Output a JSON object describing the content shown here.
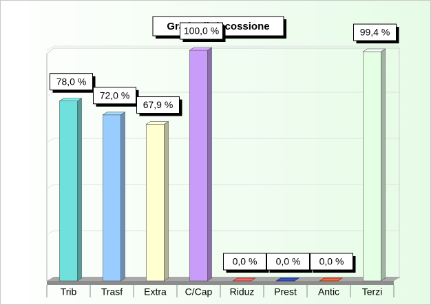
{
  "chart_data": {
    "type": "bar3d",
    "title": "Grado di riscossione",
    "categories": [
      "Trib",
      "Trasf",
      "Extra",
      "C/Cap",
      "Riduz",
      "Prest",
      "Antic",
      "Terzi"
    ],
    "series": [
      {
        "colors": [
          "#6fe0dc",
          "#99ccff",
          "#ffffd0",
          "#c89cf8",
          "#ff6666",
          "#3355cc",
          "#ff6633",
          "#e4ffe4"
        ],
        "values": [
          78.0,
          72.0,
          67.9,
          100.0,
          0.0,
          0.0,
          0.0,
          99.4
        ],
        "value_labels": [
          "78,0 %",
          "72,0 %",
          "67,9 %",
          "100,0 %",
          "0,0 %",
          "0,0 %",
          "0,0 %",
          "99,4 %"
        ]
      }
    ],
    "ylim": [
      0,
      100
    ],
    "grid": true
  }
}
